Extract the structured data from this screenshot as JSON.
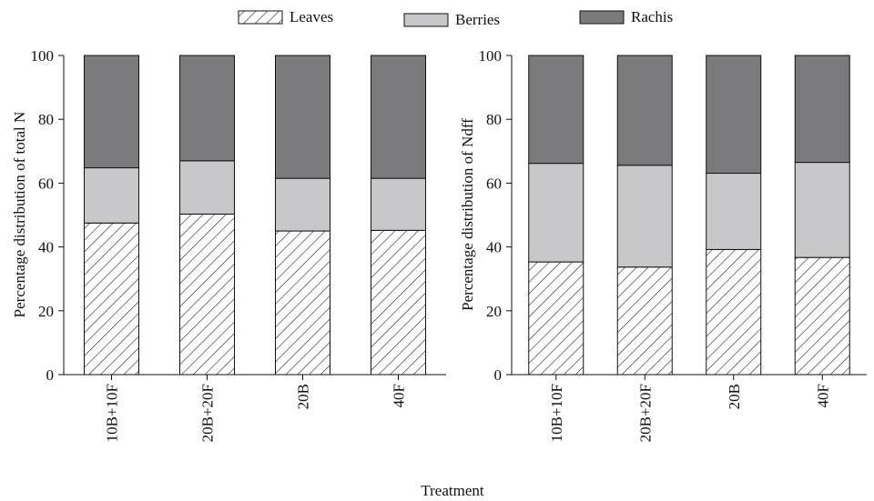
{
  "legend": {
    "items": [
      {
        "label": "Leaves",
        "pattern": "hatch"
      },
      {
        "label": "Berries",
        "color": "#c8c8ca"
      },
      {
        "label": "Rachis",
        "color": "#7a7a7d"
      }
    ]
  },
  "figure": {
    "xlabel": "Treatment"
  },
  "colors": {
    "leaves_fill": "#ffffff",
    "hatch_stroke": "#222222",
    "berries": "#c8c8ca",
    "rachis": "#7a7a7d",
    "axis": "#111111"
  },
  "chart_data": [
    {
      "type": "bar",
      "stacked": true,
      "title": "",
      "ylabel": "Percentage distribution of total N",
      "xlabel": "Treatment",
      "ylim": [
        0,
        100
      ],
      "yticks": [
        0,
        20,
        40,
        60,
        80,
        100
      ],
      "categories": [
        "10B+10F",
        "20B+20F",
        "20B",
        "40F"
      ],
      "series": [
        {
          "name": "Leaves",
          "values": [
            47.5,
            50.3,
            45.0,
            45.2
          ]
        },
        {
          "name": "Berries",
          "values": [
            17.3,
            16.7,
            16.5,
            16.3
          ]
        },
        {
          "name": "Rachis",
          "values": [
            35.2,
            33.0,
            38.5,
            38.5
          ]
        }
      ]
    },
    {
      "type": "bar",
      "stacked": true,
      "title": "",
      "ylabel": "Percentage distribution of Ndff",
      "xlabel": "Treatment",
      "ylim": [
        0,
        100
      ],
      "yticks": [
        0,
        20,
        40,
        60,
        80,
        100
      ],
      "categories": [
        "10B+10F",
        "20B+20F",
        "20B",
        "40F"
      ],
      "series": [
        {
          "name": "Leaves",
          "values": [
            35.3,
            33.7,
            39.2,
            36.7
          ]
        },
        {
          "name": "Berries",
          "values": [
            30.9,
            31.9,
            23.9,
            29.8
          ]
        },
        {
          "name": "Rachis",
          "values": [
            33.8,
            34.4,
            36.9,
            33.5
          ]
        }
      ]
    }
  ]
}
